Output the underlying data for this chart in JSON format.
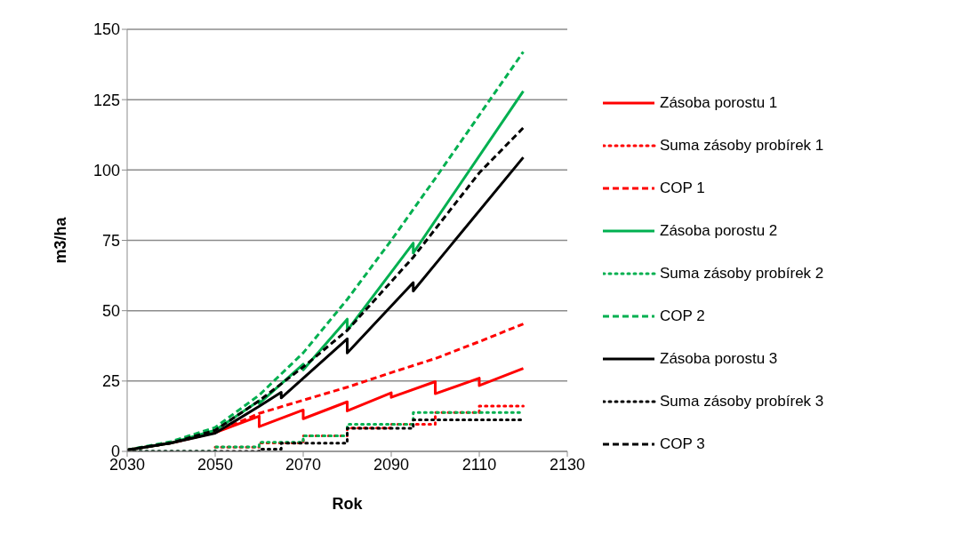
{
  "chart_data": {
    "type": "line",
    "xlabel": "Rok",
    "ylabel": "m3/ha",
    "xlim": [
      2030,
      2130
    ],
    "xticks": [
      2030,
      2050,
      2070,
      2090,
      2110,
      2130
    ],
    "ylim": [
      0,
      150
    ],
    "yticks": [
      0,
      25,
      50,
      75,
      100,
      125,
      150
    ],
    "grid": "y",
    "legend": "right",
    "marker": "none",
    "series": [
      {
        "name": "Zásoba porostu 1",
        "color": "#ff0000",
        "line_style": "solid",
        "x": [
          2030,
          2040,
          2050,
          2060,
          2060,
          2070,
          2070,
          2080,
          2080,
          2090,
          2090,
          2100,
          2100,
          2110,
          2110,
          2120
        ],
        "values": [
          0.5,
          3,
          6.7,
          12.5,
          8.8,
          14.7,
          11.6,
          17.6,
          14.4,
          20.8,
          19.2,
          24.8,
          20.5,
          26,
          23.4,
          29.5
        ]
      },
      {
        "name": "Suma zásoby probírek 1",
        "color": "#ff0000",
        "line_style": "dotted",
        "x": [
          2050,
          2060,
          2060,
          2070,
          2070,
          2080,
          2080,
          2090,
          2090,
          2100,
          2100,
          2110,
          2110,
          2120
        ],
        "values": [
          1.5,
          1.5,
          3,
          3,
          5.5,
          5.5,
          8.3,
          8.3,
          9.6,
          9.6,
          13.8,
          13.8,
          16.1,
          16.1
        ]
      },
      {
        "name": "COP 1",
        "color": "#ff0000",
        "line_style": "dashed",
        "x": [
          2030,
          2040,
          2050,
          2060,
          2070,
          2080,
          2090,
          2100,
          2110,
          2120
        ],
        "values": [
          0.5,
          3,
          6.7,
          13.5,
          18.2,
          22.8,
          28,
          33,
          39,
          45.3
        ]
      },
      {
        "name": "Zásoba porostu 2",
        "color": "#00b050",
        "line_style": "solid",
        "x": [
          2030,
          2040,
          2050,
          2060,
          2060,
          2070,
          2070,
          2080,
          2080,
          2095,
          2095,
          2120
        ],
        "values": [
          0.5,
          3,
          7.5,
          18,
          17,
          31,
          29,
          47,
          43,
          74,
          70.5,
          128
        ]
      },
      {
        "name": "Suma zásoby probírek 2",
        "color": "#00b050",
        "line_style": "dotted",
        "x": [
          2030,
          2050,
          2050,
          2060,
          2060,
          2070,
          2070,
          2080,
          2080,
          2095,
          2095,
          2120
        ],
        "values": [
          0,
          0,
          1.6,
          1.6,
          3.2,
          3.2,
          5.5,
          5.5,
          9.6,
          9.6,
          13.8,
          13.8
        ]
      },
      {
        "name": "COP 2",
        "color": "#00b050",
        "line_style": "dashed",
        "x": [
          2030,
          2040,
          2050,
          2060,
          2070,
          2080,
          2090,
          2100,
          2110,
          2120
        ],
        "values": [
          0.5,
          3.5,
          8.5,
          20,
          35,
          54,
          75,
          97,
          119.5,
          142
        ]
      },
      {
        "name": "Zásoba porostu 3",
        "color": "#000000",
        "line_style": "solid",
        "x": [
          2030,
          2040,
          2050,
          2060,
          2065,
          2065,
          2080,
          2080,
          2095,
          2095,
          2120
        ],
        "values": [
          0.5,
          3,
          6.5,
          16,
          21,
          19,
          40,
          35,
          60,
          57,
          104.5
        ]
      },
      {
        "name": "Suma zásoby probírek 3",
        "color": "#000000",
        "line_style": "dotted",
        "x": [
          2030,
          2060,
          2060,
          2065,
          2065,
          2080,
          2080,
          2095,
          2095,
          2120
        ],
        "values": [
          0,
          0,
          0.8,
          0.8,
          2.9,
          2.9,
          8.2,
          8.2,
          11.2,
          11.2
        ]
      },
      {
        "name": "COP 3",
        "color": "#000000",
        "line_style": "dashed",
        "x": [
          2030,
          2040,
          2050,
          2060,
          2070,
          2080,
          2095,
          2100,
          2110,
          2120
        ],
        "values": [
          0.5,
          3,
          7.5,
          18,
          30,
          43,
          69,
          79,
          99,
          115
        ]
      }
    ]
  }
}
